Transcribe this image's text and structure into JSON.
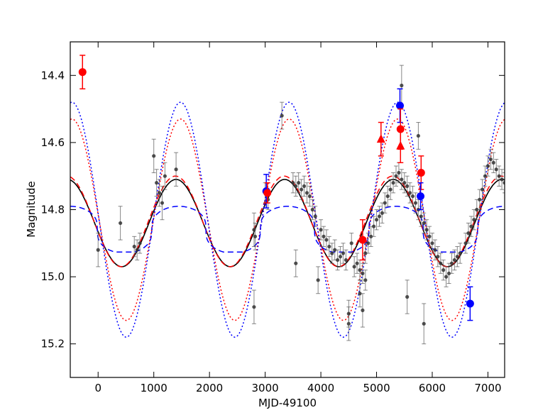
{
  "chart_data": {
    "type": "scatter",
    "title": "",
    "xlabel": "MJD-49100",
    "ylabel": "Magnitude",
    "xlim": [
      -500,
      7300
    ],
    "ylim": [
      15.3,
      14.3
    ],
    "y_inverted": true,
    "xticks": [
      0,
      1000,
      2000,
      3000,
      4000,
      5000,
      6000,
      7000
    ],
    "xtick_labels": [
      "0",
      "1000",
      "2000",
      "3000",
      "4000",
      "5000",
      "6000",
      "7000"
    ],
    "yticks": [
      14.4,
      14.6,
      14.8,
      15.0,
      15.2
    ],
    "ytick_labels": [
      "14.4",
      "14.6",
      "14.8",
      "15.0",
      "15.2"
    ],
    "grid": false,
    "colors": {
      "data": "#333333",
      "fit": "#000000",
      "red": "#ff0000",
      "blue": "#0000ff"
    },
    "curves": [
      {
        "name": "solid black fit",
        "color": "#000000",
        "style": "solid",
        "mean": 14.84,
        "amp": 0.13,
        "period": 1950,
        "phase_peak": 1400,
        "sharp": 1.0
      },
      {
        "name": "red dashed",
        "color": "#ff0000",
        "style": "dashed",
        "mean": 14.835,
        "amp": 0.135,
        "period": 1950,
        "phase_peak": 1390,
        "sharp": 1.0
      },
      {
        "name": "blue dashed",
        "color": "#0000ff",
        "style": "dashed",
        "mean": 14.86,
        "amp": 0.07,
        "period": 1950,
        "phase_peak": 1450,
        "sharp": 3.0
      },
      {
        "name": "red dotted",
        "color": "#ff0000",
        "style": "dotted",
        "mean": 14.83,
        "amp": 0.3,
        "period": 1950,
        "phase_peak": 1480,
        "sharp": 1.0
      },
      {
        "name": "blue dotted",
        "color": "#0000ff",
        "style": "dotted",
        "mean": 14.83,
        "amp": 0.35,
        "period": 1950,
        "phase_peak": 1480,
        "sharp": 1.0
      }
    ],
    "data_points": [
      [
        0,
        14.92,
        0.05
      ],
      [
        400,
        14.84,
        0.05
      ],
      [
        650,
        14.91,
        0.03
      ],
      [
        700,
        14.92,
        0.03
      ],
      [
        750,
        14.9,
        0.03
      ],
      [
        1000,
        14.64,
        0.05
      ],
      [
        1050,
        14.72,
        0.04
      ],
      [
        1100,
        14.75,
        0.04
      ],
      [
        1150,
        14.78,
        0.05
      ],
      [
        1200,
        14.7,
        0.04
      ],
      [
        1400,
        14.68,
        0.05
      ],
      [
        2800,
        14.86,
        0.05
      ],
      [
        2820,
        14.88,
        0.04
      ],
      [
        2800,
        15.09,
        0.05
      ],
      [
        3000,
        14.75,
        0.03
      ],
      [
        3050,
        14.77,
        0.03
      ],
      [
        3300,
        14.52,
        0.04
      ],
      [
        3550,
        14.96,
        0.04
      ],
      [
        3500,
        14.72,
        0.03
      ],
      [
        3550,
        14.73,
        0.03
      ],
      [
        3600,
        14.72,
        0.03
      ],
      [
        3650,
        14.74,
        0.03
      ],
      [
        3700,
        14.73,
        0.03
      ],
      [
        3750,
        14.75,
        0.03
      ],
      [
        3800,
        14.76,
        0.03
      ],
      [
        3850,
        14.8,
        0.03
      ],
      [
        3900,
        14.82,
        0.03
      ],
      [
        3950,
        15.01,
        0.04
      ],
      [
        4000,
        14.86,
        0.03
      ],
      [
        4050,
        14.88,
        0.03
      ],
      [
        4100,
        14.89,
        0.03
      ],
      [
        4150,
        14.91,
        0.03
      ],
      [
        4200,
        14.93,
        0.03
      ],
      [
        4250,
        14.92,
        0.03
      ],
      [
        4300,
        14.95,
        0.03
      ],
      [
        4350,
        14.94,
        0.03
      ],
      [
        4400,
        14.93,
        0.03
      ],
      [
        4450,
        14.95,
        0.03
      ],
      [
        4500,
        15.14,
        0.05
      ],
      [
        4500,
        15.11,
        0.04
      ],
      [
        4550,
        14.9,
        0.03
      ],
      [
        4600,
        14.97,
        0.03
      ],
      [
        4650,
        14.96,
        0.03
      ],
      [
        4700,
        14.98,
        0.03
      ],
      [
        4750,
        14.99,
        0.03
      ],
      [
        4800,
        15.01,
        0.03
      ],
      [
        4700,
        15.05,
        0.04
      ],
      [
        4750,
        15.1,
        0.05
      ],
      [
        4800,
        14.93,
        0.03
      ],
      [
        4850,
        14.9,
        0.03
      ],
      [
        4900,
        14.88,
        0.03
      ],
      [
        4950,
        14.85,
        0.03
      ],
      [
        5000,
        14.83,
        0.03
      ],
      [
        5050,
        14.82,
        0.03
      ],
      [
        5100,
        14.81,
        0.03
      ],
      [
        5150,
        14.78,
        0.03
      ],
      [
        5200,
        14.76,
        0.03
      ],
      [
        5250,
        14.74,
        0.03
      ],
      [
        5300,
        14.72,
        0.03
      ],
      [
        5350,
        14.7,
        0.03
      ],
      [
        5400,
        14.69,
        0.03
      ],
      [
        5450,
        14.71,
        0.03
      ],
      [
        5450,
        14.43,
        0.06
      ],
      [
        5500,
        14.72,
        0.03
      ],
      [
        5550,
        14.73,
        0.03
      ],
      [
        5550,
        15.06,
        0.05
      ],
      [
        5600,
        14.75,
        0.03
      ],
      [
        5650,
        14.76,
        0.03
      ],
      [
        5700,
        14.78,
        0.03
      ],
      [
        5750,
        14.8,
        0.03
      ],
      [
        5750,
        14.58,
        0.04
      ],
      [
        5800,
        14.82,
        0.03
      ],
      [
        5850,
        15.14,
        0.06
      ],
      [
        5850,
        14.84,
        0.03
      ],
      [
        5900,
        14.86,
        0.03
      ],
      [
        5950,
        14.88,
        0.03
      ],
      [
        6000,
        14.9,
        0.03
      ],
      [
        6050,
        14.92,
        0.03
      ],
      [
        6100,
        14.94,
        0.03
      ],
      [
        6150,
        14.96,
        0.03
      ],
      [
        6200,
        14.98,
        0.03
      ],
      [
        6250,
        15.0,
        0.03
      ],
      [
        6300,
        14.99,
        0.03
      ],
      [
        6350,
        14.96,
        0.03
      ],
      [
        6400,
        14.95,
        0.03
      ],
      [
        6450,
        14.94,
        0.03
      ],
      [
        6500,
        14.93,
        0.03
      ],
      [
        6600,
        14.9,
        0.03
      ],
      [
        6650,
        14.87,
        0.03
      ],
      [
        6700,
        14.85,
        0.03
      ],
      [
        6750,
        14.83,
        0.03
      ],
      [
        6800,
        14.8,
        0.03
      ],
      [
        6850,
        14.77,
        0.03
      ],
      [
        6900,
        14.74,
        0.03
      ],
      [
        6950,
        14.7,
        0.03
      ],
      [
        7000,
        14.67,
        0.03
      ],
      [
        7050,
        14.65,
        0.03
      ],
      [
        7100,
        14.66,
        0.03
      ],
      [
        7150,
        14.68,
        0.03
      ],
      [
        7200,
        14.7,
        0.03
      ],
      [
        7250,
        14.71,
        0.03
      ],
      [
        7300,
        14.72,
        0.03
      ]
    ],
    "highlight_points": [
      {
        "x": -280,
        "y": 14.39,
        "err": 0.05,
        "color": "#ff0000",
        "marker": "circle"
      },
      {
        "x": 3020,
        "y": 14.745,
        "err": 0.05,
        "color": "#0000ff",
        "marker": "circle"
      },
      {
        "x": 3040,
        "y": 14.75,
        "err": 0.03,
        "color": "#ff0000",
        "marker": "circle"
      },
      {
        "x": 4750,
        "y": 14.89,
        "err": 0.06,
        "color": "#ff0000",
        "marker": "circle"
      },
      {
        "x": 5080,
        "y": 14.59,
        "err": 0.05,
        "color": "#ff0000",
        "marker": "triangle"
      },
      {
        "x": 5420,
        "y": 14.49,
        "err": 0.05,
        "color": "#0000ff",
        "marker": "circle"
      },
      {
        "x": 5430,
        "y": 14.56,
        "err": 0.06,
        "color": "#ff0000",
        "marker": "circle"
      },
      {
        "x": 5430,
        "y": 14.61,
        "err": 0.05,
        "color": "#ff0000",
        "marker": "triangle"
      },
      {
        "x": 5800,
        "y": 14.69,
        "err": 0.05,
        "color": "#ff0000",
        "marker": "circle"
      },
      {
        "x": 5790,
        "y": 14.76,
        "err": 0.04,
        "color": "#0000ff",
        "marker": "circle"
      },
      {
        "x": 6680,
        "y": 15.08,
        "err": 0.05,
        "color": "#0000ff",
        "marker": "circle"
      }
    ]
  }
}
